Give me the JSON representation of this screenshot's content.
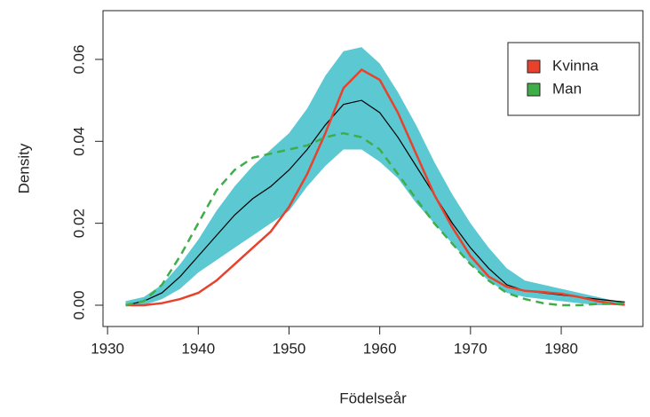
{
  "chart_data": {
    "type": "density",
    "xlabel": "Födelseår",
    "ylabel": "Density",
    "x": [
      1932,
      1934,
      1936,
      1938,
      1940,
      1942,
      1944,
      1946,
      1948,
      1950,
      1952,
      1954,
      1956,
      1958,
      1960,
      1962,
      1964,
      1966,
      1968,
      1970,
      1972,
      1974,
      1976,
      1978,
      1980,
      1982,
      1984,
      1986,
      1987
    ],
    "band": {
      "color": "#5bc8d2",
      "lower": [
        0,
        0,
        0.0015,
        0.004,
        0.008,
        0.011,
        0.014,
        0.017,
        0.02,
        0.023,
        0.029,
        0.034,
        0.038,
        0.038,
        0.035,
        0.031,
        0.025,
        0.02,
        0.015,
        0.01,
        0.006,
        0.003,
        0.002,
        0.0015,
        0.001,
        0.0005,
        0,
        0,
        0
      ],
      "upper": [
        0.001,
        0.002,
        0.005,
        0.01,
        0.016,
        0.023,
        0.029,
        0.034,
        0.038,
        0.042,
        0.048,
        0.056,
        0.062,
        0.063,
        0.059,
        0.052,
        0.044,
        0.035,
        0.027,
        0.02,
        0.014,
        0.009,
        0.006,
        0.005,
        0.004,
        0.003,
        0.002,
        0.001,
        0.0008
      ]
    },
    "mean_line": {
      "color": "#000000",
      "values": [
        0,
        0.001,
        0.003,
        0.007,
        0.012,
        0.017,
        0.022,
        0.026,
        0.029,
        0.033,
        0.038,
        0.044,
        0.049,
        0.05,
        0.047,
        0.041,
        0.034,
        0.027,
        0.02,
        0.014,
        0.009,
        0.005,
        0.0035,
        0.003,
        0.0025,
        0.002,
        0.0015,
        0.001,
        0.0008
      ]
    },
    "series": [
      {
        "name": "Kvinna",
        "color": "#e8412c",
        "dashed": false,
        "values": [
          0,
          0,
          0.0005,
          0.0015,
          0.003,
          0.006,
          0.01,
          0.014,
          0.018,
          0.024,
          0.032,
          0.042,
          0.053,
          0.0575,
          0.055,
          0.047,
          0.037,
          0.027,
          0.019,
          0.012,
          0.007,
          0.0045,
          0.0035,
          0.0032,
          0.0028,
          0.002,
          0.001,
          0.0003,
          0.0001
        ]
      },
      {
        "name": "Man",
        "color": "#3fae49",
        "dashed": true,
        "values": [
          0,
          0.001,
          0.005,
          0.012,
          0.02,
          0.028,
          0.033,
          0.036,
          0.037,
          0.038,
          0.039,
          0.041,
          0.042,
          0.041,
          0.038,
          0.032,
          0.026,
          0.02,
          0.015,
          0.01,
          0.006,
          0.003,
          0.0015,
          0.0005,
          0,
          0,
          0.0003,
          0.0005,
          0.0005
        ]
      }
    ],
    "xlim": [
      1929.5,
      1989
    ],
    "ylim": [
      -0.0052,
      0.0719
    ],
    "xticks": [
      1930,
      1940,
      1950,
      1960,
      1970,
      1980
    ],
    "yticks": [
      {
        "value": 0,
        "label": "0.00"
      },
      {
        "value": 0.02,
        "label": "0.02"
      },
      {
        "value": 0.04,
        "label": "0.04"
      },
      {
        "value": 0.06,
        "label": "0.06"
      }
    ],
    "legend": "topright"
  }
}
